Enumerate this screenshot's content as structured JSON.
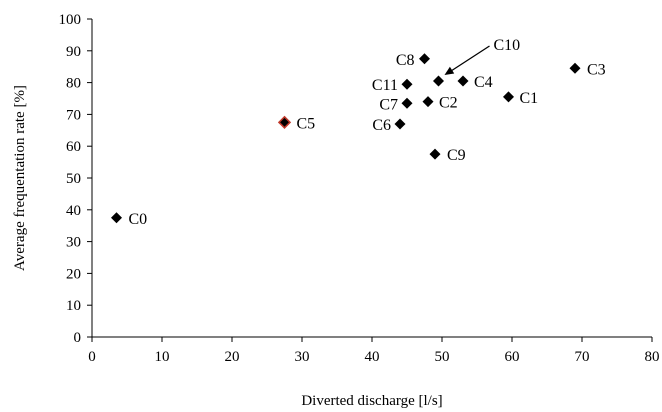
{
  "chart_data": {
    "type": "scatter",
    "title": "",
    "xlabel": "Diverted discharge [l/s]",
    "ylabel": "Average frequentation rate [%]",
    "xlim": [
      0,
      80
    ],
    "ylim": [
      0,
      100
    ],
    "xticks": [
      0,
      10,
      20,
      30,
      40,
      50,
      60,
      70,
      80
    ],
    "yticks": [
      0,
      10,
      20,
      30,
      40,
      50,
      60,
      70,
      80,
      90,
      100
    ],
    "grid": false,
    "legend": "none",
    "marker_color": "#000000",
    "highlight_outline_color": "#c0392b",
    "points": [
      {
        "label": "C0",
        "x": 3.5,
        "y": 37.5
      },
      {
        "label": "C1",
        "x": 59.5,
        "y": 75.5
      },
      {
        "label": "C2",
        "x": 48.0,
        "y": 74.0
      },
      {
        "label": "C3",
        "x": 69.0,
        "y": 84.5
      },
      {
        "label": "C4",
        "x": 53.0,
        "y": 80.5
      },
      {
        "label": "C5",
        "x": 27.5,
        "y": 67.5,
        "highlight": true
      },
      {
        "label": "C6",
        "x": 44.0,
        "y": 67.0
      },
      {
        "label": "C7",
        "x": 45.0,
        "y": 73.5
      },
      {
        "label": "C8",
        "x": 47.5,
        "y": 87.5
      },
      {
        "label": "C9",
        "x": 49.0,
        "y": 57.5
      },
      {
        "label": "C10",
        "x": 49.5,
        "y": 80.5
      },
      {
        "label": "C11",
        "x": 45.0,
        "y": 79.5
      }
    ]
  }
}
